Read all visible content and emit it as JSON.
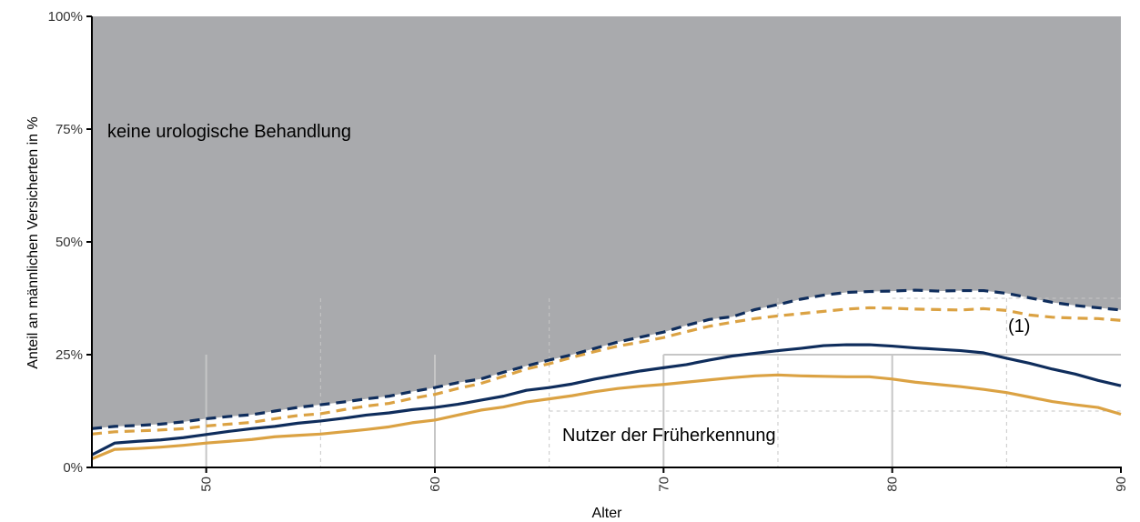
{
  "chart_data": {
    "type": "area",
    "xlabel": "Alter",
    "ylabel": "Anteil an männlichen Versicherten in %",
    "xlim": [
      45,
      90
    ],
    "ylim": [
      0,
      100
    ],
    "x_ticks": [
      "50",
      "60",
      "70",
      "80",
      "90"
    ],
    "y_ticks": [
      "0%",
      "25%",
      "50%",
      "75%",
      "100%"
    ],
    "annotations": {
      "keine": "keine urologische Behandlung",
      "nutzer": "Nutzer der Früherkennung",
      "marker": "(1)"
    },
    "colors": {
      "gray_area": "#a9aaad",
      "navy": "#0f2d5c",
      "gold": "#dba243",
      "grid": "#c6c6c6"
    },
    "x": [
      45,
      46,
      47,
      48,
      49,
      50,
      51,
      52,
      53,
      54,
      55,
      56,
      57,
      58,
      59,
      60,
      61,
      62,
      63,
      64,
      65,
      66,
      67,
      68,
      69,
      70,
      71,
      72,
      73,
      74,
      75,
      76,
      77,
      78,
      79,
      80,
      81,
      82,
      83,
      84,
      85,
      86,
      87,
      88,
      89,
      90
    ],
    "series": [
      {
        "style": "dashed",
        "color": "navy",
        "values": [
          8.6,
          9.1,
          9.3,
          9.6,
          10.1,
          10.8,
          11.3,
          11.7,
          12.5,
          13.3,
          13.9,
          14.5,
          15.2,
          15.8,
          16.8,
          17.7,
          18.8,
          19.6,
          21.1,
          22.5,
          23.8,
          25,
          26.4,
          27.8,
          28.9,
          30,
          31.5,
          32.8,
          33.4,
          35,
          36.1,
          37.3,
          38.2,
          38.8,
          39,
          39.1,
          39.3,
          39.1,
          39.2,
          39.2,
          38.6,
          37.6,
          36.6,
          35.9,
          35.4,
          34.9
        ]
      },
      {
        "style": "dashed",
        "color": "gold",
        "values": [
          7.4,
          7.9,
          8.1,
          8.3,
          8.6,
          9.2,
          9.6,
          10,
          10.8,
          11.5,
          11.9,
          12.8,
          13.6,
          14.2,
          15.3,
          16.2,
          17.5,
          18.6,
          20.2,
          21.8,
          23,
          24.4,
          25.7,
          26.9,
          27.8,
          28.8,
          30.1,
          31.3,
          32.2,
          33,
          33.6,
          34.1,
          34.6,
          35.1,
          35.4,
          35.3,
          35.1,
          35,
          34.9,
          35.2,
          34.8,
          33.8,
          33.3,
          33.1,
          33,
          32.6
        ]
      },
      {
        "style": "solid",
        "color": "navy",
        "values": [
          2.8,
          5.4,
          5.8,
          6.1,
          6.6,
          7.3,
          8,
          8.6,
          9.1,
          9.8,
          10.3,
          10.9,
          11.6,
          12.1,
          12.8,
          13.3,
          14,
          14.9,
          15.8,
          17.1,
          17.7,
          18.5,
          19.6,
          20.5,
          21.4,
          22.1,
          22.8,
          23.8,
          24.7,
          25.3,
          25.9,
          26.4,
          27,
          27.2,
          27.2,
          26.9,
          26.5,
          26.2,
          25.9,
          25.4,
          24.2,
          23.1,
          21.8,
          20.7,
          19.3,
          18.1
        ]
      },
      {
        "style": "solid",
        "color": "gold",
        "values": [
          1.9,
          4,
          4.2,
          4.5,
          4.9,
          5.4,
          5.8,
          6.2,
          6.8,
          7.1,
          7.4,
          7.9,
          8.4,
          9,
          9.9,
          10.5,
          11.6,
          12.7,
          13.4,
          14.5,
          15.2,
          15.9,
          16.8,
          17.5,
          18,
          18.4,
          18.9,
          19.4,
          19.9,
          20.3,
          20.5,
          20.3,
          20.2,
          20.1,
          20.1,
          19.6,
          18.9,
          18.4,
          17.9,
          17.3,
          16.6,
          15.6,
          14.6,
          13.9,
          13.3,
          11.8
        ]
      }
    ]
  }
}
